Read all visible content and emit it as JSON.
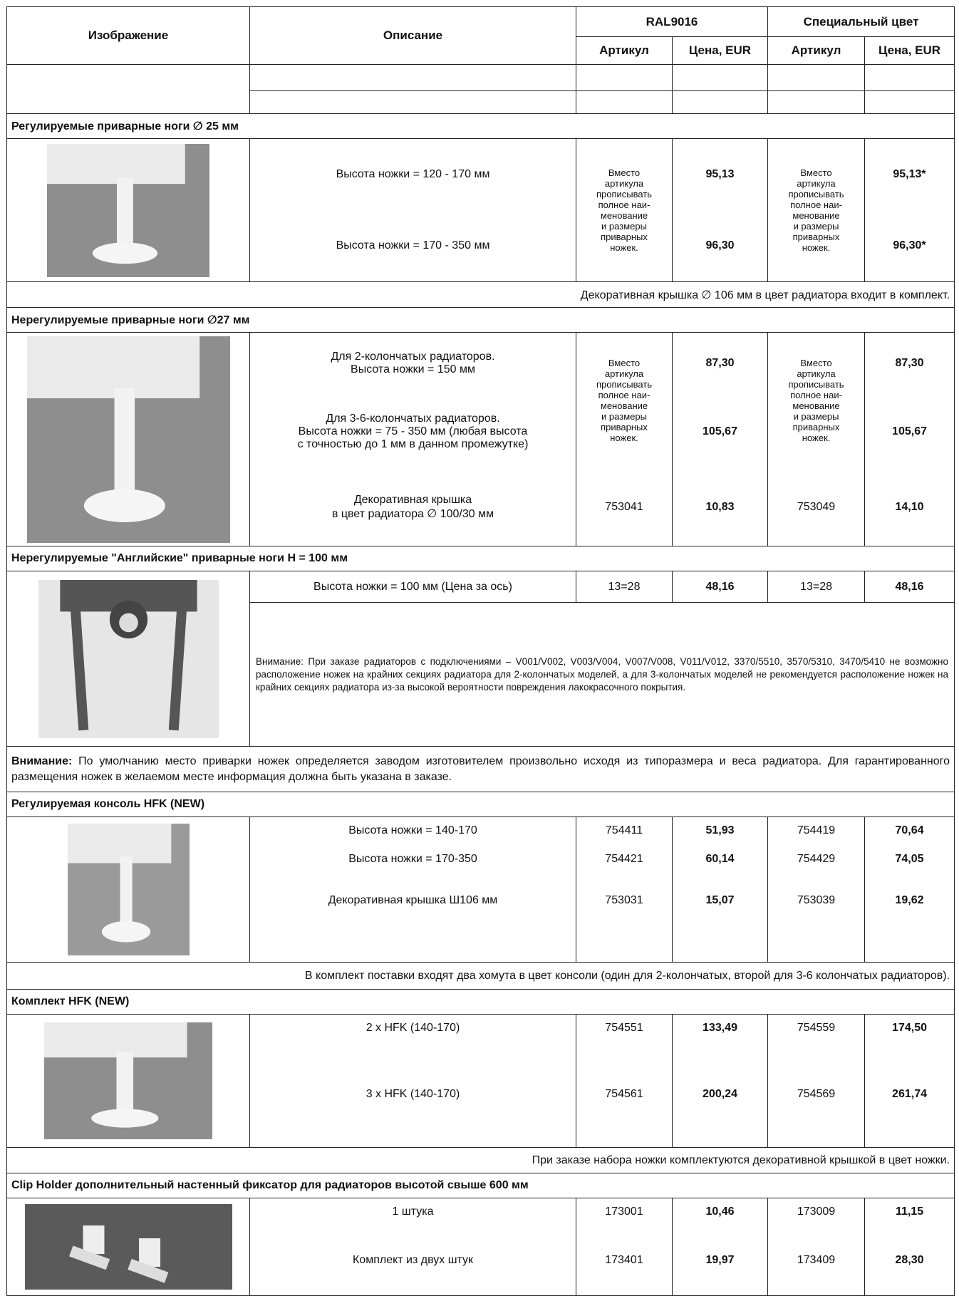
{
  "header": {
    "image": "Изображение",
    "description": "Описание",
    "ral": "RAL9016",
    "special": "Специальный цвет",
    "article": "Артикул",
    "price": "Цена, EUR",
    "special_article": "Артикул",
    "special_price": "Цена, EUR"
  },
  "sections": [
    {
      "title": "Регулируемые приварные ноги ∅ 25 мм",
      "article_note": "Вместо\nартикула\nпрописывать\nполное наи-\nменование\nи размеры\nприварных\nножек.",
      "special_article_note": "Вместо\nартикула\nпрописывать\nполное наи-\nменование\nи размеры\nприварных\nножек.",
      "rows": [
        {
          "description": "Высота ножки = 120 - 170 мм",
          "price": "95,13",
          "special_price": "95,13*"
        },
        {
          "description": "Высота ножки = 170 - 350 мм",
          "price": "96,30",
          "special_price": "96,30*"
        }
      ],
      "note": "Декоративная крышка ∅ 106 мм в цвет радиатора входит в комплект."
    },
    {
      "title": "Нерегулируемые приварные ноги ∅27 мм",
      "article_note": "Вместо\nартикула\nпрописывать\nполное наи-\nменование\nи размеры\nприварных\nножек.",
      "special_article_note": "Вместо\nартикула\nпрописывать\nполное наи-\nменование\nи размеры\nприварных\nножек.",
      "rows": [
        {
          "description": "Для 2-колончатых радиаторов.\nВысота ножки = 150 мм",
          "price": "87,30",
          "special_price": "87,30"
        },
        {
          "description": "Для 3-6-колончатых радиаторов.\nВысота ножки = 75 - 350 мм (любая высота\nс точностью до 1 мм в данном промежутке)",
          "price": "105,67",
          "special_price": "105,67"
        },
        {
          "description": "Декоративная крышка\nв цвет радиатора ∅ 100/30 мм",
          "article": "753041",
          "price": "10,83",
          "special_article": "753049",
          "special_price": "14,10"
        }
      ]
    },
    {
      "title": "Нерегулируемые \"Английские\" приварные ноги H = 100 мм",
      "rows": [
        {
          "description": "Высота ножки = 100 мм (Цена за ось)",
          "article": "13=28",
          "price": "48,16",
          "special_article": "13=28",
          "special_price": "48,16"
        }
      ],
      "warning": "Внимание: При заказе радиаторов с подключениями – V001/V002, V003/V004, V007/V008, V011/V012, 3370/5510, 3570/5310, 3470/5410 не возможно расположение ножек на крайних секциях радиатора для 2-колончатых моделей, а для 3-колончатых моделей не рекомендуется расположение ножек на крайних секциях радиатора из-за высокой вероятности повреждения лакокрасочного покрытия."
    },
    {
      "title": "Регулируемая консоль HFK (NEW)",
      "rows": [
        {
          "description": "Высота ножки = 140-170",
          "article": "754411",
          "price": "51,93",
          "special_article": "754419",
          "special_price": "70,64"
        },
        {
          "description": "Высота ножки = 170-350",
          "article": "754421",
          "price": "60,14",
          "special_article": "754429",
          "special_price": "74,05"
        },
        {
          "description": "Декоративная крышка Ш106 мм",
          "article": "753031",
          "price": "15,07",
          "special_article": "753039",
          "special_price": "19,62"
        }
      ],
      "note": "В комплект поставки входят два хомута в цвет консоли (один для 2-колончатых, второй для 3-6 колончатых радиаторов)."
    },
    {
      "title": "Комплект HFK (NEW)",
      "rows": [
        {
          "description": "2 x HFK (140-170)",
          "article": "754551",
          "price": "133,49",
          "special_article": "754559",
          "special_price": "174,50"
        },
        {
          "description": "3 x HFK (140-170)",
          "article": "754561",
          "price": "200,24",
          "special_article": "754569",
          "special_price": "261,74"
        }
      ],
      "note": "При заказе набора ножки комплектуются декоративной крышкой в цвет ножки."
    },
    {
      "title": "Clip Holder дополнительный настенный фиксатор для радиаторов высотой свыше 600 мм",
      "rows": [
        {
          "description": "1 штука",
          "article": "173001",
          "price": "10,46",
          "special_article": "173009",
          "special_price": "11,15"
        },
        {
          "description": "Комплект из двух штук",
          "article": "173401",
          "price": "19,97",
          "special_article": "173409",
          "special_price": "28,30"
        }
      ]
    }
  ],
  "attention": {
    "label": "Внимание:",
    "text": " По умолчанию место приварки ножек определяется заводом изготовителем произвольно исходя из типоразмера и веса радиатора. Для гарантированного размещения ножек в желаемом месте информация должна быть указана в заказе."
  }
}
